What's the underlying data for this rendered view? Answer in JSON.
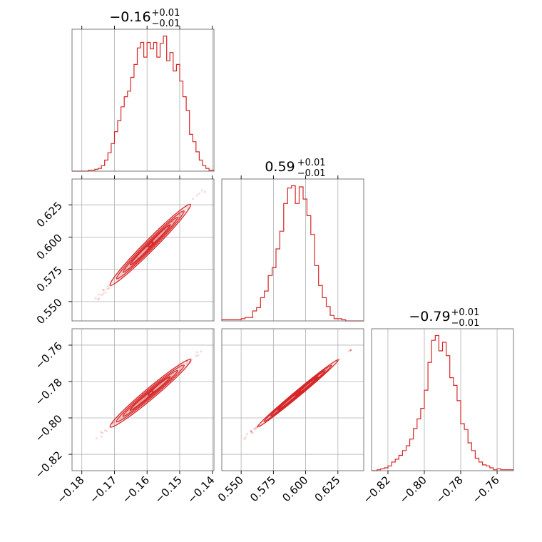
{
  "chart_data": {
    "type": "corner",
    "color": "#d62728",
    "grid": true,
    "params": [
      {
        "range": [
          -0.183,
          -0.1395
        ],
        "ticks": [
          -0.18,
          -0.17,
          -0.16,
          -0.15,
          -0.14
        ],
        "tick_labels": [
          "−0.18",
          "−0.17",
          "−0.16",
          "−0.15",
          "−0.14"
        ],
        "title": {
          "value": "−0.16",
          "plus": "+0.01",
          "minus": "−0.01"
        },
        "hist_edges": [
          -0.183,
          -0.18,
          -0.178,
          -0.176,
          -0.175,
          -0.174,
          -0.173,
          -0.172,
          -0.171,
          -0.17,
          -0.169,
          -0.168,
          -0.167,
          -0.166,
          -0.165,
          -0.164,
          -0.163,
          -0.162,
          -0.161,
          -0.16,
          -0.159,
          -0.158,
          -0.157,
          -0.156,
          -0.155,
          -0.154,
          -0.153,
          -0.152,
          -0.151,
          -0.15,
          -0.149,
          -0.148,
          -0.147,
          -0.146,
          -0.145,
          -0.144,
          -0.143,
          -0.142,
          -0.141,
          -0.1395
        ],
        "hist_counts": [
          0,
          0,
          1,
          2,
          3,
          6,
          12,
          20,
          30,
          43,
          55,
          70,
          81,
          87,
          102,
          116,
          134,
          140,
          124,
          140,
          133,
          140,
          124,
          139,
          147,
          120,
          129,
          109,
          116,
          98,
          81,
          66,
          40,
          32,
          21,
          12,
          6,
          3,
          1
        ]
      },
      {
        "range": [
          0.535,
          0.645
        ],
        "ticks": [
          0.55,
          0.575,
          0.6,
          0.625
        ],
        "tick_labels": [
          "0.550",
          "0.575",
          "0.600",
          "0.625"
        ],
        "title": {
          "value": "0.59",
          "plus": "+0.01",
          "minus": "−0.01"
        },
        "hist_edges": [
          0.535,
          0.55,
          0.553,
          0.556,
          0.559,
          0.562,
          0.565,
          0.568,
          0.571,
          0.574,
          0.577,
          0.58,
          0.583,
          0.586,
          0.589,
          0.592,
          0.595,
          0.598,
          0.601,
          0.604,
          0.607,
          0.61,
          0.613,
          0.616,
          0.619,
          0.622,
          0.625,
          0.628,
          0.631,
          0.634,
          0.645
        ],
        "hist_counts": [
          1,
          2,
          3,
          3,
          9,
          12,
          21,
          27,
          41,
          48,
          65,
          81,
          106,
          120,
          122,
          106,
          121,
          110,
          95,
          78,
          50,
          32,
          21,
          13,
          5,
          2,
          2,
          1,
          0,
          0
        ]
      },
      {
        "range": [
          -0.829,
          -0.751
        ],
        "ticks": [
          -0.82,
          -0.8,
          -0.78,
          -0.76
        ],
        "tick_labels": [
          "−0.82",
          "−0.80",
          "−0.78",
          "−0.76"
        ],
        "title": {
          "value": "−0.79",
          "plus": "+0.01",
          "minus": "−0.01"
        },
        "hist_edges": [
          -0.829,
          -0.826,
          -0.824,
          -0.822,
          -0.82,
          -0.818,
          -0.816,
          -0.814,
          -0.812,
          -0.81,
          -0.808,
          -0.806,
          -0.804,
          -0.802,
          -0.8,
          -0.798,
          -0.796,
          -0.794,
          -0.792,
          -0.79,
          -0.788,
          -0.786,
          -0.784,
          -0.782,
          -0.78,
          -0.778,
          -0.776,
          -0.774,
          -0.772,
          -0.77,
          -0.768,
          -0.766,
          -0.764,
          -0.762,
          -0.76,
          -0.758,
          -0.751
        ],
        "hist_counts": [
          0,
          1,
          2,
          3,
          5,
          9,
          12,
          16,
          21,
          26,
          33,
          44,
          54,
          65,
          84,
          113,
          136,
          141,
          125,
          134,
          120,
          97,
          89,
          73,
          49,
          43,
          29,
          21,
          13,
          9,
          6,
          5,
          3,
          1,
          2,
          1
        ]
      }
    ],
    "pair_relations": [
      {
        "x_param": 0,
        "y_param": 1,
        "x_from": -0.17,
        "y_from": 0.566,
        "x_to": -0.148,
        "y_to": 0.622
      },
      {
        "x_param": 0,
        "y_param": 2,
        "x_from": -0.17,
        "y_from": -0.803,
        "x_to": -0.148,
        "y_to": -0.77
      },
      {
        "x_param": 1,
        "y_param": 2,
        "x_from": 0.566,
        "y_from": -0.803,
        "x_to": 0.622,
        "y_to": -0.77
      }
    ]
  }
}
